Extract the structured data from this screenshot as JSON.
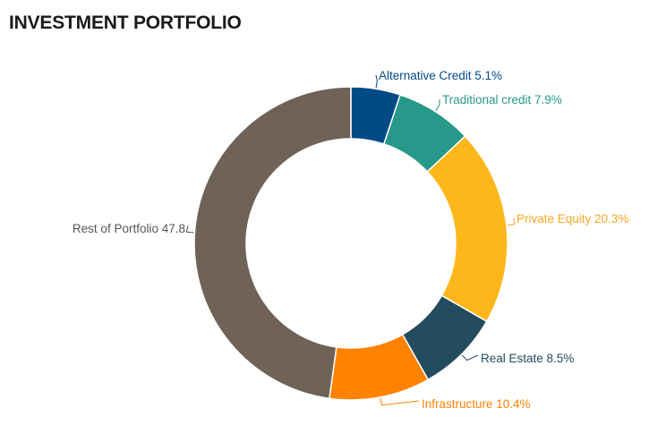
{
  "title": "INVESTMENT PORTFOLIO",
  "chart_data": {
    "type": "pie",
    "variant": "donut",
    "title": "INVESTMENT PORTFOLIO",
    "slices": [
      {
        "label": "Alternative Credit",
        "display": "Alternative Credit 5.1%",
        "value": 5.1,
        "color": "#004a87",
        "text_color": "#004a87"
      },
      {
        "label": "Traditional credit",
        "display": "Traditional credit 7.9%",
        "value": 7.9,
        "color": "#27998a",
        "text_color": "#27998a"
      },
      {
        "label": "Private Equity",
        "display": "Private Equity 20.3%",
        "value": 20.3,
        "color": "#fdb71a",
        "text_color": "#f6a823"
      },
      {
        "label": "Real Estate",
        "display": "Real Estate 8.5%",
        "value": 8.5,
        "color": "#234d5e",
        "text_color": "#234d5e"
      },
      {
        "label": "Infrastructure",
        "display": "Infrastructure 10.4%",
        "value": 10.4,
        "color": "#ff8200",
        "text_color": "#ff8200"
      },
      {
        "label": "Rest of Portfolio",
        "display": "Rest of Portfolio 47.8",
        "value": 47.8,
        "color": "#6f6257",
        "text_color": "#555555"
      }
    ]
  }
}
